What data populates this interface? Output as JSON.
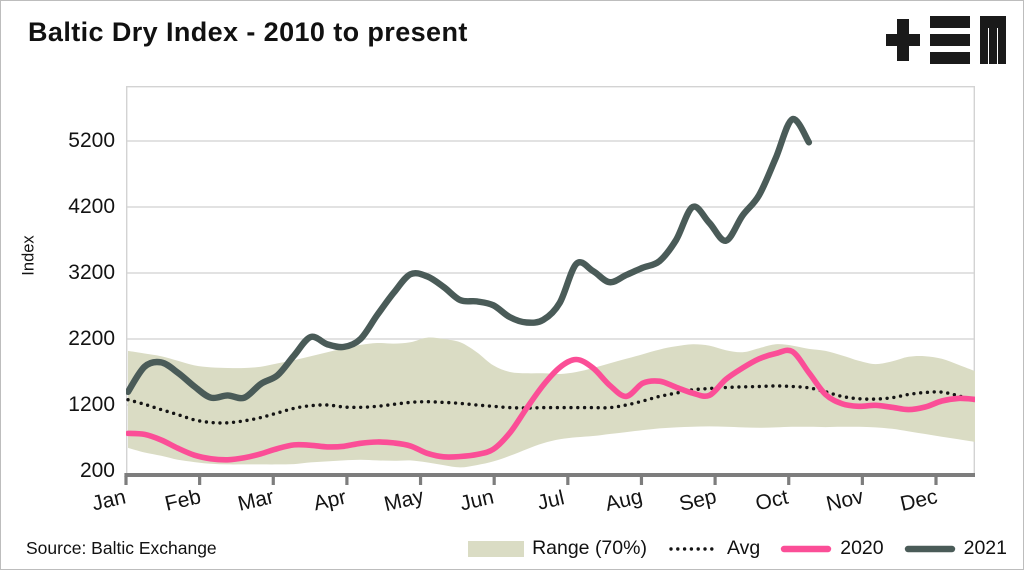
{
  "title": "Baltic Dry Index - 2010 to present",
  "source_note": "Source: Baltic Exchange",
  "brand_logo": "tem-logo",
  "colors": {
    "range_band": "#dadcc4",
    "avg": "#141414",
    "y2020": "#fb4e97",
    "y2021": "#4a5b58",
    "grid": "#d9d9d9",
    "plot_border": "#d3d3d3",
    "axis": "#7d7d7d",
    "text": "#141414",
    "logo": "#1a1a1a"
  },
  "y_axis": {
    "label": "Index",
    "ticks": [
      200,
      1200,
      2200,
      3200,
      4200,
      5200
    ]
  },
  "x_axis": {
    "months": [
      "Jan",
      "Feb",
      "Mar",
      "Apr",
      "May",
      "Jun",
      "Jul",
      "Aug",
      "Sep",
      "Oct",
      "Nov",
      "Dec"
    ]
  },
  "legend": [
    {
      "label": "Range (70%)",
      "swatch": "band"
    },
    {
      "label": "Avg",
      "swatch": "dotted"
    },
    {
      "label": "2020",
      "swatch": "line-2020"
    },
    {
      "label": "2021",
      "swatch": "line-2021"
    }
  ],
  "chart_data": {
    "type": "line",
    "title": "Baltic Dry Index - 2010 to present",
    "xlabel": "",
    "ylabel": "Index",
    "ylim": [
      200,
      5700
    ],
    "yticks": [
      200,
      1200,
      2200,
      3200,
      4200,
      5200
    ],
    "x_categories": [
      "Jan",
      "Feb",
      "Mar",
      "Apr",
      "May",
      "Jun",
      "Jul",
      "Aug",
      "Sep",
      "Oct",
      "Nov",
      "Dec"
    ],
    "sampling_note": "values sampled weekly, 52 points Jan-Dec; 2021 series ends mid-October",
    "grid": "horizontal",
    "legend_position": "bottom",
    "series": [
      {
        "name": "range70_top",
        "style": "band-upper",
        "values": [
          2020,
          1980,
          1940,
          1870,
          1800,
          1770,
          1760,
          1760,
          1780,
          1830,
          1880,
          1940,
          2000,
          2060,
          2110,
          2140,
          2130,
          2150,
          2220,
          2200,
          2150,
          2000,
          1800,
          1700,
          1680,
          1680,
          1670,
          1700,
          1760,
          1830,
          1900,
          1970,
          2040,
          2090,
          2120,
          2100,
          2030,
          2000,
          2060,
          2120,
          2100,
          2050,
          2020,
          1950,
          1870,
          1820,
          1860,
          1930,
          1940,
          1900,
          1810,
          1715
        ]
      },
      {
        "name": "range70_bottom",
        "style": "band-lower",
        "values": [
          550,
          480,
          430,
          370,
          335,
          310,
          300,
          300,
          300,
          300,
          305,
          330,
          345,
          360,
          370,
          360,
          355,
          360,
          330,
          290,
          255,
          290,
          345,
          430,
          530,
          620,
          680,
          710,
          730,
          760,
          790,
          820,
          845,
          860,
          870,
          875,
          870,
          860,
          855,
          860,
          870,
          870,
          865,
          870,
          870,
          860,
          840,
          800,
          760,
          720,
          680,
          640
        ]
      },
      {
        "name": "Avg",
        "style": "dotted",
        "values": [
          1280,
          1210,
          1130,
          1055,
          975,
          935,
          930,
          960,
          1010,
          1080,
          1150,
          1190,
          1200,
          1170,
          1165,
          1180,
          1210,
          1240,
          1250,
          1240,
          1225,
          1200,
          1180,
          1160,
          1155,
          1160,
          1160,
          1160,
          1160,
          1160,
          1200,
          1260,
          1330,
          1380,
          1430,
          1450,
          1465,
          1475,
          1480,
          1490,
          1480,
          1460,
          1400,
          1330,
          1295,
          1290,
          1310,
          1360,
          1390,
          1395,
          1340,
          1265
        ]
      },
      {
        "name": "2020",
        "style": "line",
        "values": [
          770,
          755,
          670,
          545,
          440,
          385,
          370,
          400,
          460,
          540,
          595,
          590,
          565,
          575,
          620,
          640,
          625,
          580,
          470,
          415,
          420,
          450,
          530,
          780,
          1150,
          1500,
          1770,
          1890,
          1760,
          1500,
          1330,
          1530,
          1560,
          1470,
          1380,
          1345,
          1590,
          1760,
          1900,
          1980,
          2010,
          1690,
          1360,
          1220,
          1180,
          1195,
          1165,
          1130,
          1170,
          1260,
          1300,
          1285
        ]
      },
      {
        "name": "2021",
        "style": "line",
        "values": [
          1400,
          1780,
          1845,
          1690,
          1480,
          1310,
          1345,
          1310,
          1520,
          1650,
          1950,
          2230,
          2120,
          2080,
          2200,
          2560,
          2900,
          3180,
          3150,
          2990,
          2790,
          2770,
          2710,
          2530,
          2450,
          2490,
          2750,
          3340,
          3230,
          3060,
          3170,
          3280,
          3380,
          3700,
          4200,
          3960,
          3690,
          4070,
          4380,
          4940,
          5530,
          5180
        ]
      }
    ]
  }
}
